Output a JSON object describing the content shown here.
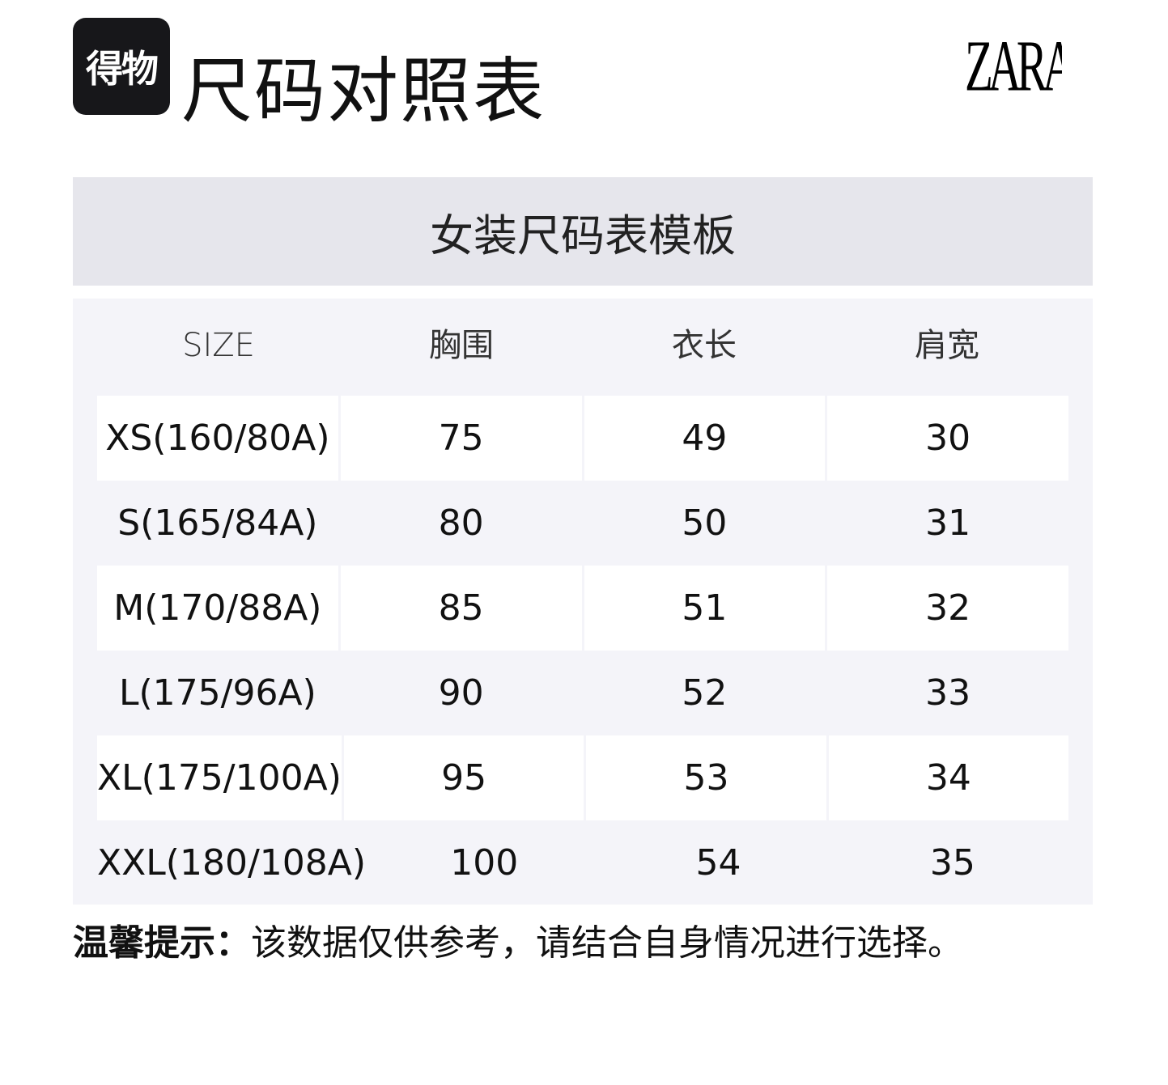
{
  "header": {
    "brand_logo_text": "得物",
    "title": "尺码对照表",
    "zara_logo_text": "ZARA"
  },
  "banner": {
    "title": "女装尺码表模板"
  },
  "table": {
    "columns": [
      "SIZE",
      "胸围",
      "衣长",
      "肩宽"
    ],
    "rows": [
      [
        "XS(160/80A)",
        "75",
        "49",
        "30"
      ],
      [
        "S(165/84A)",
        "80",
        "50",
        "31"
      ],
      [
        "M(170/88A)",
        "85",
        "51",
        "32"
      ],
      [
        "L(175/96A)",
        "90",
        "52",
        "33"
      ],
      [
        "XL(175/100A)",
        "95",
        "53",
        "34"
      ],
      [
        "XXL(180/108A)",
        "100",
        "54",
        "35"
      ]
    ]
  },
  "note": {
    "label": "温馨提示：",
    "text": "该数据仅供参考，请结合自身情况进行选择。"
  },
  "colors": {
    "banner": "#e6e6ec",
    "table_bg": "#f4f4f9",
    "logo_bg": "#17171a"
  }
}
